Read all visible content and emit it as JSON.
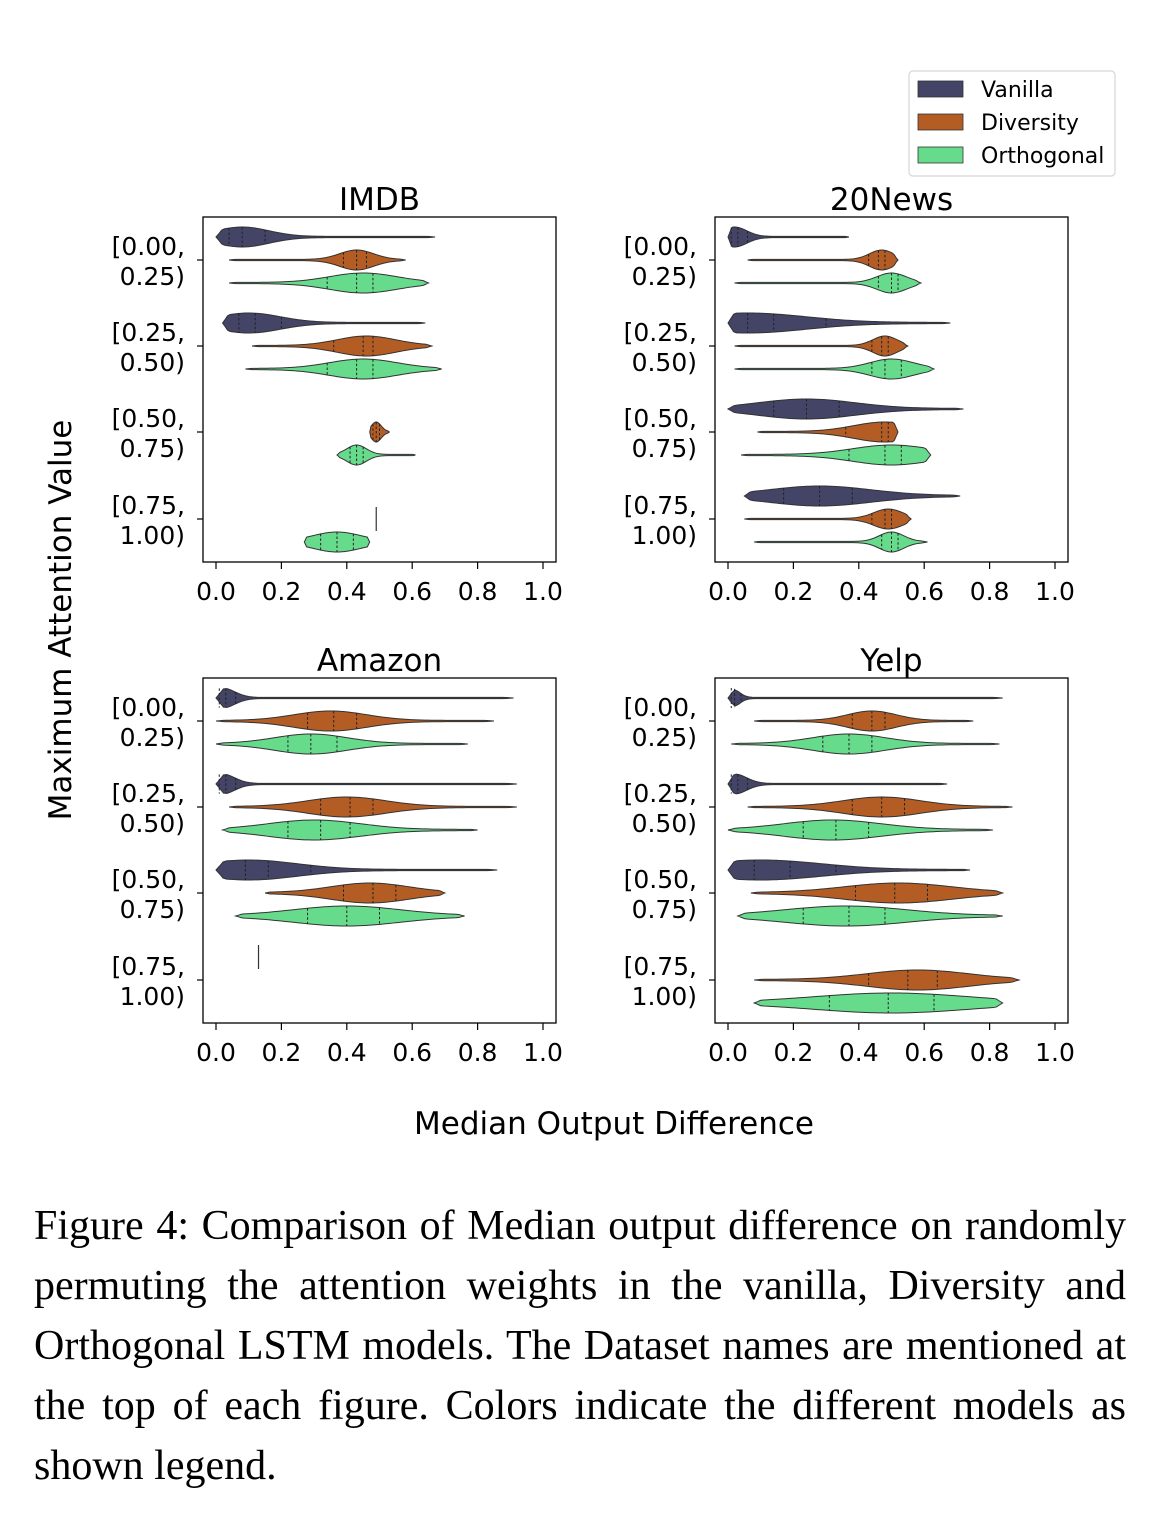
{
  "legend": [
    {
      "name": "Vanilla",
      "color": "#434466"
    },
    {
      "name": "Diversity",
      "color": "#b35d25"
    },
    {
      "name": "Orthogonal",
      "color": "#67db8c"
    }
  ],
  "ylabel": "Maximum Attention Value",
  "xlabel": "Median Output Difference",
  "caption": "Figure 4:  Comparison of Median output difference on randomly permuting the attention weights in the vanilla, Diversity and Orthogonal LSTM models. The Dataset names are mentioned at the top of each figure. Colors indicate the different models as shown legend.",
  "chart_data": [
    {
      "type": "violin",
      "title": "IMDB",
      "xlim": [
        0,
        1
      ],
      "xticks": [
        "0.0",
        "0.2",
        "0.4",
        "0.6",
        "0.8",
        "1.0"
      ],
      "categories": [
        [
          "[0.00,",
          "0.25)"
        ],
        [
          "[0.25,",
          "0.50)"
        ],
        [
          "[0.50,",
          "0.75)"
        ],
        [
          "[0.75,",
          "1.00)"
        ]
      ],
      "series": [
        {
          "name": "Vanilla",
          "violins": [
            {
              "min": 0.0,
              "max": 0.67,
              "q1": 0.04,
              "median": 0.08,
              "q3": 0.15,
              "peak": 0.08
            },
            {
              "min": 0.02,
              "max": 0.64,
              "q1": 0.07,
              "median": 0.12,
              "q3": 0.2,
              "peak": 0.1
            },
            null,
            null
          ]
        },
        {
          "name": "Diversity",
          "violins": [
            {
              "min": 0.04,
              "max": 0.58,
              "q1": 0.39,
              "median": 0.43,
              "q3": 0.46,
              "peak": 0.43
            },
            {
              "min": 0.11,
              "max": 0.66,
              "q1": 0.36,
              "median": 0.45,
              "q3": 0.48,
              "peak": 0.46
            },
            {
              "min": 0.47,
              "max": 0.53,
              "q1": 0.48,
              "median": 0.49,
              "q3": 0.5,
              "peak": 0.49
            },
            {
              "min": 0.49,
              "max": 0.49,
              "q1": 0.49,
              "median": 0.49,
              "q3": 0.49,
              "peak": 0.49
            }
          ]
        },
        {
          "name": "Orthogonal",
          "violins": [
            {
              "min": 0.04,
              "max": 0.65,
              "q1": 0.34,
              "median": 0.43,
              "q3": 0.48,
              "peak": 0.45
            },
            {
              "min": 0.09,
              "max": 0.69,
              "q1": 0.34,
              "median": 0.43,
              "q3": 0.48,
              "peak": 0.45
            },
            {
              "min": 0.37,
              "max": 0.61,
              "q1": 0.41,
              "median": 0.43,
              "q3": 0.45,
              "peak": 0.43
            },
            {
              "min": 0.27,
              "max": 0.47,
              "q1": 0.32,
              "median": 0.37,
              "q3": 0.42,
              "peak": 0.37
            }
          ]
        }
      ]
    },
    {
      "type": "violin",
      "title": "20News",
      "xlim": [
        0,
        1
      ],
      "xticks": [
        "0.0",
        "0.2",
        "0.4",
        "0.6",
        "0.8",
        "1.0"
      ],
      "categories": [
        [
          "[0.00,",
          "0.25)"
        ],
        [
          "[0.25,",
          "0.50)"
        ],
        [
          "[0.50,",
          "0.75)"
        ],
        [
          "[0.75,",
          "1.00)"
        ]
      ],
      "series": [
        {
          "name": "Vanilla",
          "violins": [
            {
              "min": 0.0,
              "max": 0.37,
              "q1": 0.01,
              "median": 0.03,
              "q3": 0.06,
              "peak": 0.02
            },
            {
              "min": 0.0,
              "max": 0.68,
              "q1": 0.06,
              "median": 0.14,
              "q3": 0.3,
              "peak": 0.06
            },
            {
              "min": 0.0,
              "max": 0.72,
              "q1": 0.14,
              "median": 0.24,
              "q3": 0.34,
              "peak": 0.24
            },
            {
              "min": 0.05,
              "max": 0.71,
              "q1": 0.17,
              "median": 0.28,
              "q3": 0.38,
              "peak": 0.28
            }
          ]
        },
        {
          "name": "Diversity",
          "violins": [
            {
              "min": 0.06,
              "max": 0.52,
              "q1": 0.43,
              "median": 0.46,
              "q3": 0.48,
              "peak": 0.47
            },
            {
              "min": 0.02,
              "max": 0.55,
              "q1": 0.44,
              "median": 0.47,
              "q3": 0.49,
              "peak": 0.48
            },
            {
              "min": 0.09,
              "max": 0.52,
              "q1": 0.36,
              "median": 0.47,
              "q3": 0.49,
              "peak": 0.48
            },
            {
              "min": 0.05,
              "max": 0.56,
              "q1": 0.44,
              "median": 0.48,
              "q3": 0.5,
              "peak": 0.49
            }
          ]
        },
        {
          "name": "Orthogonal",
          "violins": [
            {
              "min": 0.02,
              "max": 0.59,
              "q1": 0.46,
              "median": 0.5,
              "q3": 0.52,
              "peak": 0.5
            },
            {
              "min": 0.02,
              "max": 0.63,
              "q1": 0.44,
              "median": 0.48,
              "q3": 0.53,
              "peak": 0.5
            },
            {
              "min": 0.04,
              "max": 0.62,
              "q1": 0.37,
              "median": 0.48,
              "q3": 0.53,
              "peak": 0.5
            },
            {
              "min": 0.08,
              "max": 0.61,
              "q1": 0.47,
              "median": 0.5,
              "q3": 0.52,
              "peak": 0.5
            }
          ]
        }
      ]
    },
    {
      "type": "violin",
      "title": "Amazon",
      "xlim": [
        0,
        1
      ],
      "xticks": [
        "0.0",
        "0.2",
        "0.4",
        "0.6",
        "0.8",
        "1.0"
      ],
      "categories": [
        [
          "[0.00,",
          "0.25)"
        ],
        [
          "[0.25,",
          "0.50)"
        ],
        [
          "[0.50,",
          "0.75)"
        ],
        [
          "[0.75,",
          "1.00)"
        ]
      ],
      "series": [
        {
          "name": "Vanilla",
          "violins": [
            {
              "min": 0.0,
              "max": 0.91,
              "q1": 0.01,
              "median": 0.03,
              "q3": 0.06,
              "peak": 0.02
            },
            {
              "min": 0.0,
              "max": 0.92,
              "q1": 0.01,
              "median": 0.03,
              "q3": 0.06,
              "peak": 0.02
            },
            {
              "min": 0.0,
              "max": 0.86,
              "q1": 0.09,
              "median": 0.16,
              "q3": 0.29,
              "peak": 0.1
            },
            {
              "min": 0.13,
              "max": 0.13,
              "q1": 0.13,
              "median": 0.13,
              "q3": 0.13,
              "peak": 0.13
            }
          ]
        },
        {
          "name": "Diversity",
          "violins": [
            {
              "min": 0.0,
              "max": 0.85,
              "q1": 0.28,
              "median": 0.36,
              "q3": 0.43,
              "peak": 0.35
            },
            {
              "min": 0.04,
              "max": 0.92,
              "q1": 0.32,
              "median": 0.41,
              "q3": 0.48,
              "peak": 0.4
            },
            {
              "min": 0.15,
              "max": 0.7,
              "q1": 0.39,
              "median": 0.48,
              "q3": 0.55,
              "peak": 0.47
            },
            null
          ]
        },
        {
          "name": "Orthogonal",
          "violins": [
            {
              "min": 0.0,
              "max": 0.77,
              "q1": 0.22,
              "median": 0.29,
              "q3": 0.37,
              "peak": 0.29
            },
            {
              "min": 0.02,
              "max": 0.8,
              "q1": 0.22,
              "median": 0.32,
              "q3": 0.41,
              "peak": 0.3
            },
            {
              "min": 0.06,
              "max": 0.76,
              "q1": 0.28,
              "median": 0.4,
              "q3": 0.5,
              "peak": 0.4
            },
            null
          ]
        }
      ]
    },
    {
      "type": "violin",
      "title": "Yelp",
      "xlim": [
        0,
        1
      ],
      "xticks": [
        "0.0",
        "0.2",
        "0.4",
        "0.6",
        "0.8",
        "1.0"
      ],
      "categories": [
        [
          "[0.00,",
          "0.25)"
        ],
        [
          "[0.25,",
          "0.50)"
        ],
        [
          "[0.50,",
          "0.75)"
        ],
        [
          "[0.75,",
          "1.00)"
        ]
      ],
      "series": [
        {
          "name": "Vanilla",
          "violins": [
            {
              "min": 0.0,
              "max": 0.84,
              "q1": 0.01,
              "median": 0.02,
              "q3": 0.04,
              "peak": 0.01
            },
            {
              "min": 0.0,
              "max": 0.67,
              "q1": 0.01,
              "median": 0.03,
              "q3": 0.06,
              "peak": 0.02
            },
            {
              "min": 0.0,
              "max": 0.74,
              "q1": 0.08,
              "median": 0.19,
              "q3": 0.33,
              "peak": 0.1
            },
            null
          ]
        },
        {
          "name": "Diversity",
          "violins": [
            {
              "min": 0.08,
              "max": 0.75,
              "q1": 0.38,
              "median": 0.44,
              "q3": 0.48,
              "peak": 0.44
            },
            {
              "min": 0.06,
              "max": 0.87,
              "q1": 0.38,
              "median": 0.47,
              "q3": 0.54,
              "peak": 0.47
            },
            {
              "min": 0.07,
              "max": 0.84,
              "q1": 0.39,
              "median": 0.51,
              "q3": 0.61,
              "peak": 0.52
            },
            {
              "min": 0.08,
              "max": 0.89,
              "q1": 0.43,
              "median": 0.55,
              "q3": 0.64,
              "peak": 0.58
            }
          ]
        },
        {
          "name": "Orthogonal",
          "violins": [
            {
              "min": 0.01,
              "max": 0.83,
              "q1": 0.29,
              "median": 0.37,
              "q3": 0.44,
              "peak": 0.37
            },
            {
              "min": 0.0,
              "max": 0.81,
              "q1": 0.23,
              "median": 0.33,
              "q3": 0.43,
              "peak": 0.32
            },
            {
              "min": 0.03,
              "max": 0.84,
              "q1": 0.23,
              "median": 0.37,
              "q3": 0.48,
              "peak": 0.36
            },
            {
              "min": 0.08,
              "max": 0.84,
              "q1": 0.31,
              "median": 0.49,
              "q3": 0.63,
              "peak": 0.5
            }
          ]
        }
      ]
    }
  ]
}
